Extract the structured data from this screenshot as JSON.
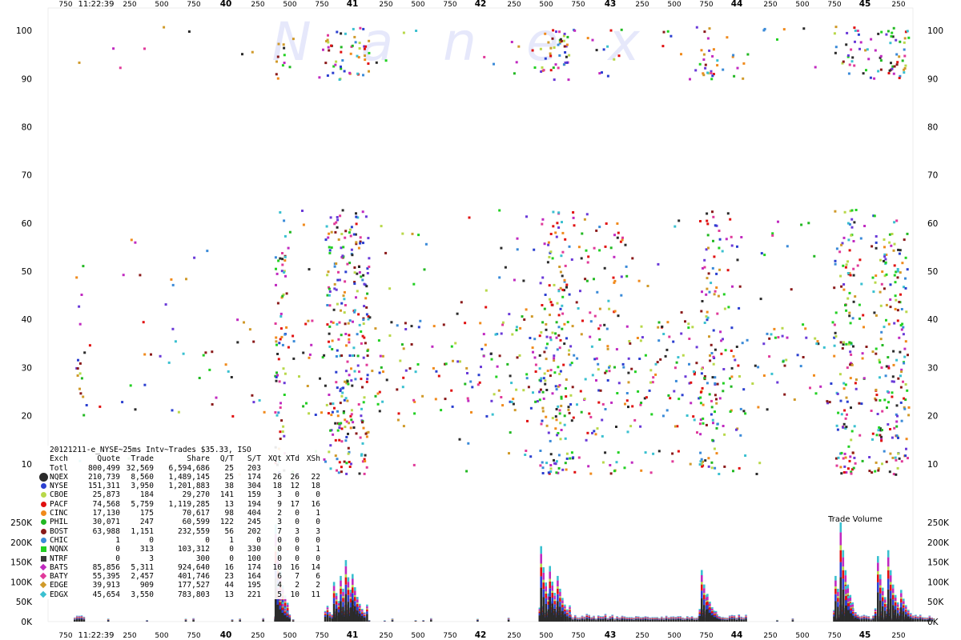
{
  "watermark": "Nanex",
  "legend": {
    "title": "20121211-e_NYSE~25ms Intv~Trades $35.33, ISO",
    "headers": [
      "Exch",
      "Quote",
      "Trade",
      "Share",
      "Q/T",
      "S/T",
      "XQt",
      "XTd",
      "XSh"
    ],
    "rows": [
      {
        "exch": "Totl",
        "quote": "800,499",
        "trade": "32,569",
        "share": "6,594,686",
        "qt": "25",
        "st": "203",
        "xqt": "",
        "xtd": "",
        "xsh": "",
        "color": "",
        "marker": "none"
      },
      {
        "exch": "NQEX",
        "quote": "210,739",
        "trade": "8,560",
        "share": "1,489,145",
        "qt": "25",
        "st": "174",
        "xqt": "26",
        "xtd": "26",
        "xsh": "22",
        "color": "#2b2b2b",
        "marker": "big-circle"
      },
      {
        "exch": "NYSE",
        "quote": "151,311",
        "trade": "3,950",
        "share": "1,201,883",
        "qt": "38",
        "st": "304",
        "xqt": "18",
        "xtd": "12",
        "xsh": "18",
        "color": "#2b3fd0",
        "marker": "circle"
      },
      {
        "exch": "CBOE",
        "quote": "25,873",
        "trade": "184",
        "share": "29,270",
        "qt": "141",
        "st": "159",
        "xqt": "3",
        "xtd": "0",
        "xsh": "0",
        "color": "#b8d84a",
        "marker": "circle"
      },
      {
        "exch": "PACF",
        "quote": "74,568",
        "trade": "5,759",
        "share": "1,119,285",
        "qt": "13",
        "st": "194",
        "xqt": "9",
        "xtd": "17",
        "xsh": "16",
        "color": "#e01010",
        "marker": "circle"
      },
      {
        "exch": "CINC",
        "quote": "17,130",
        "trade": "175",
        "share": "70,617",
        "qt": "98",
        "st": "404",
        "xqt": "2",
        "xtd": "0",
        "xsh": "1",
        "color": "#f08a1c",
        "marker": "circle"
      },
      {
        "exch": "PHIL",
        "quote": "30,071",
        "trade": "247",
        "share": "60,599",
        "qt": "122",
        "st": "245",
        "xqt": "3",
        "xtd": "0",
        "xsh": "0",
        "color": "#22b822",
        "marker": "circle"
      },
      {
        "exch": "BOST",
        "quote": "63,988",
        "trade": "1,151",
        "share": "232,559",
        "qt": "56",
        "st": "202",
        "xqt": "7",
        "xtd": "3",
        "xsh": "3",
        "color": "#8a1a1a",
        "marker": "circle"
      },
      {
        "exch": "CHIC",
        "quote": "1",
        "trade": "0",
        "share": "0",
        "qt": "1",
        "st": "0",
        "xqt": "0",
        "xtd": "0",
        "xsh": "0",
        "color": "#3a8ad8",
        "marker": "circle"
      },
      {
        "exch": "NQNX",
        "quote": "0",
        "trade": "313",
        "share": "103,312",
        "qt": "0",
        "st": "330",
        "xqt": "0",
        "xtd": "0",
        "xsh": "1",
        "color": "#22d022",
        "marker": "square"
      },
      {
        "exch": "NTRF",
        "quote": "0",
        "trade": "3",
        "share": "300",
        "qt": "0",
        "st": "100",
        "xqt": "0",
        "xtd": "0",
        "xsh": "0",
        "color": "#3a3a3a",
        "marker": "square"
      },
      {
        "exch": "BATS",
        "quote": "85,856",
        "trade": "5,311",
        "share": "924,640",
        "qt": "16",
        "st": "174",
        "xqt": "10",
        "xtd": "16",
        "xsh": "14",
        "color": "#c02ac0",
        "marker": "diamond"
      },
      {
        "exch": "BATY",
        "quote": "55,395",
        "trade": "2,457",
        "share": "401,746",
        "qt": "23",
        "st": "164",
        "xqt": "6",
        "xtd": "7",
        "xsh": "6",
        "color": "#e03a9a",
        "marker": "diamond"
      },
      {
        "exch": "EDGE",
        "quote": "39,913",
        "trade": "909",
        "share": "177,527",
        "qt": "44",
        "st": "195",
        "xqt": "4",
        "xtd": "2",
        "xsh": "2",
        "color": "#d09a2a",
        "marker": "diamond"
      },
      {
        "exch": "EDGX",
        "quote": "45,654",
        "trade": "3,550",
        "share": "783,803",
        "qt": "13",
        "st": "221",
        "xqt": "5",
        "xtd": "10",
        "xsh": "11",
        "color": "#3ac0d0",
        "marker": "diamond"
      }
    ]
  },
  "chart_data": {
    "type": "scatter",
    "title": "",
    "time_label": "11:22:39",
    "minute_labels": [
      "40",
      "41",
      "42",
      "43",
      "44",
      "45"
    ],
    "ms_tick_labels": [
      "750",
      "250",
      "500",
      "750",
      "250",
      "500",
      "750",
      "250",
      "500",
      "750",
      "250",
      "500",
      "750",
      "250",
      "500",
      "750",
      "250",
      "500",
      "750",
      "250"
    ],
    "price_axis": {
      "ticks": [
        "10",
        "20",
        "30",
        "40",
        "50",
        "60",
        "70",
        "80",
        "90",
        "100"
      ],
      "ylim": [
        0,
        103
      ]
    },
    "volume_axis": {
      "label": "Trade Volume",
      "ticks": [
        "0K",
        "50K",
        "100K",
        "150K",
        "200K",
        "250K"
      ],
      "ylim": [
        0,
        260000
      ]
    },
    "series_colors": [
      "#2b2b2b",
      "#2b3fd0",
      "#b8d84a",
      "#e01010",
      "#f08a1c",
      "#22b822",
      "#8a1a1a",
      "#3a8ad8",
      "#22d022",
      "#c02ac0",
      "#e03a9a",
      "#d09a2a",
      "#3ac0d0",
      "#6a3ad8"
    ],
    "activity_bursts": [
      {
        "start_s": 0.0,
        "end_s": 2.0,
        "density": 0.25
      },
      {
        "start_s": 2.0,
        "end_s": 38.0,
        "density": 0.04
      },
      {
        "start_s": 38.8,
        "end_s": 40.8,
        "density": 1.0
      },
      {
        "start_s": 40.8,
        "end_s": 48.5,
        "density": 0.12
      },
      {
        "start_s": 48.5,
        "end_s": 57.0,
        "density": 1.0
      },
      {
        "start_s": 57.0,
        "end_s": 90.0,
        "density": 0.14
      },
      {
        "start_s": 90.0,
        "end_s": 96.0,
        "density": 0.95
      },
      {
        "start_s": 96.0,
        "end_s": 106.0,
        "density": 0.35
      },
      {
        "start_s": 106.0,
        "end_s": 121.0,
        "density": 0.2
      },
      {
        "start_s": 121.0,
        "end_s": 125.0,
        "density": 0.85
      },
      {
        "start_s": 125.0,
        "end_s": 130.0,
        "density": 0.3
      },
      {
        "start_s": 130.0,
        "end_s": 147.0,
        "density": 0.1
      },
      {
        "start_s": 147.0,
        "end_s": 151.0,
        "density": 0.9
      },
      {
        "start_s": 151.0,
        "end_s": 155.0,
        "density": 0.35
      },
      {
        "start_s": 155.0,
        "end_s": 161.0,
        "density": 0.9
      },
      {
        "start_s": 161.0,
        "end_s": 166.0,
        "density": 0.4
      }
    ],
    "volume_peaks": [
      {
        "t_s": 38.9,
        "v": 245000
      },
      {
        "t_s": 39.3,
        "v": 95000
      },
      {
        "t_s": 50.2,
        "v": 100000
      },
      {
        "t_s": 51.5,
        "v": 115000
      },
      {
        "t_s": 52.5,
        "v": 155000
      },
      {
        "t_s": 53.8,
        "v": 120000
      },
      {
        "t_s": 90.3,
        "v": 190000
      },
      {
        "t_s": 92.0,
        "v": 140000
      },
      {
        "t_s": 93.5,
        "v": 115000
      },
      {
        "t_s": 121.4,
        "v": 130000
      },
      {
        "t_s": 122.5,
        "v": 70000
      },
      {
        "t_s": 147.3,
        "v": 115000
      },
      {
        "t_s": 148.3,
        "v": 250000
      },
      {
        "t_s": 149.3,
        "v": 90000
      },
      {
        "t_s": 155.5,
        "v": 165000
      },
      {
        "t_s": 157.5,
        "v": 180000
      },
      {
        "t_s": 160.0,
        "v": 80000
      }
    ]
  }
}
